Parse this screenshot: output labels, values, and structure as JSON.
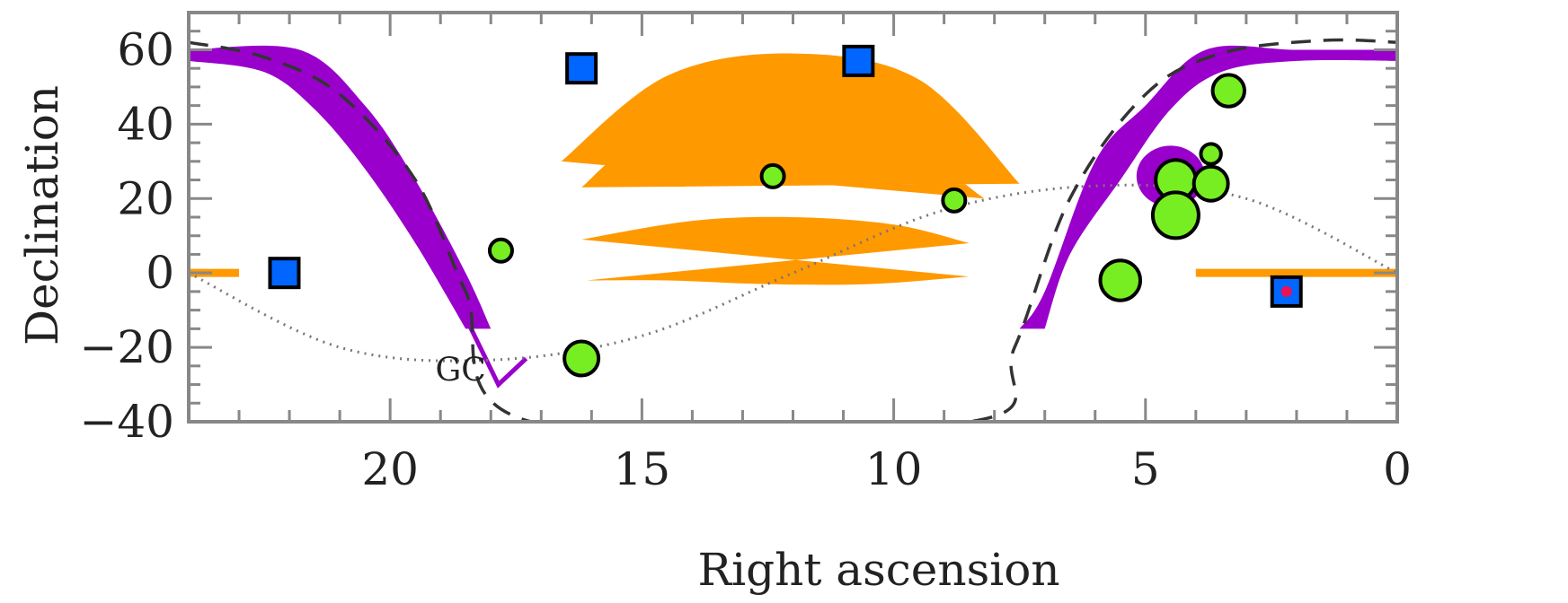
{
  "chart_data": {
    "type": "scatter",
    "xlabel": "Right ascension",
    "ylabel": "Declination",
    "xlim": [
      24,
      0
    ],
    "ylim": [
      -40,
      70
    ],
    "x_reversed": true,
    "x_ticks": [
      20,
      15,
      10,
      5,
      0
    ],
    "y_ticks": [
      60,
      40,
      20,
      0,
      -20,
      -40
    ],
    "grid": false,
    "annotations": [
      {
        "text": "GC",
        "x": 18.6,
        "y": -29
      }
    ],
    "colors": {
      "purple": "#9900cc",
      "orange": "#ff9900",
      "green": "#77ee22",
      "blue": "#0066ff",
      "red": "#ee1155",
      "dash": "#333333",
      "dotted": "#777777",
      "frame": "#888888"
    },
    "galactic_plane_curve": [
      [
        24,
        62
      ],
      [
        22.5,
        58
      ],
      [
        21,
        48
      ],
      [
        19.5,
        25
      ],
      [
        18.5,
        -5
      ],
      [
        17.2,
        -40
      ],
      [
        8.5,
        -40
      ],
      [
        7.6,
        -20
      ],
      [
        6.5,
        20
      ],
      [
        5,
        48
      ],
      [
        3.5,
        59
      ],
      [
        1.5,
        62.5
      ],
      [
        0,
        62
      ]
    ],
    "ecliptic_curve": [
      [
        24,
        0
      ],
      [
        21,
        -20
      ],
      [
        18,
        -23.4
      ],
      [
        15,
        -16.9
      ],
      [
        12,
        0
      ],
      [
        9,
        16.9
      ],
      [
        6,
        23.4
      ],
      [
        3,
        20
      ],
      [
        0,
        0
      ]
    ],
    "purple_band_left": {
      "upper": [
        [
          24,
          60
        ],
        [
          21.8,
          60
        ],
        [
          20.5,
          45
        ],
        [
          19.5,
          25
        ],
        [
          18.5,
          0
        ],
        [
          18,
          -15
        ]
      ],
      "lower": [
        [
          24,
          57
        ],
        [
          22.5,
          54
        ],
        [
          21.5,
          44
        ],
        [
          20.5,
          28
        ],
        [
          19.5,
          8
        ],
        [
          18.5,
          -15
        ]
      ]
    },
    "purple_band_right": {
      "upper": [
        [
          0,
          60
        ],
        [
          2,
          60
        ],
        [
          3.8,
          60
        ],
        [
          5,
          45
        ],
        [
          6,
          30
        ],
        [
          7,
          -5
        ],
        [
          7.5,
          -15
        ]
      ],
      "lower": [
        [
          0,
          57
        ],
        [
          2,
          57
        ],
        [
          3.5,
          54
        ],
        [
          4.5,
          44
        ],
        [
          5.5,
          25
        ],
        [
          6.5,
          5
        ],
        [
          7,
          -15
        ]
      ]
    },
    "orange_upper_band": {
      "outer": [
        [
          16.6,
          30
        ],
        [
          14.5,
          53
        ],
        [
          12,
          59
        ],
        [
          9.5,
          52
        ],
        [
          7.5,
          24
        ]
      ],
      "inner": [
        [
          8.2,
          20
        ],
        [
          10.2,
          38
        ],
        [
          12.5,
          40
        ],
        [
          15,
          35
        ],
        [
          16.2,
          23
        ]
      ]
    },
    "orange_lower_band": {
      "top": [
        [
          16.2,
          9
        ],
        [
          14,
          14
        ],
        [
          12,
          15
        ],
        [
          10,
          13
        ],
        [
          8.5,
          8
        ]
      ],
      "bottom": [
        [
          8.5,
          -1
        ],
        [
          10.5,
          -3
        ],
        [
          12.5,
          -3
        ],
        [
          14.5,
          -2
        ],
        [
          16.1,
          -2
        ]
      ]
    },
    "orange_lines": [
      {
        "x1": 24,
        "x2": 23,
        "y": 0
      },
      {
        "x1": 4,
        "x2": 0,
        "y": 0
      }
    ],
    "series": [
      {
        "marker": "circle",
        "points": [
          {
            "x": 17.8,
            "y": 6,
            "size": 1
          },
          {
            "x": 16.2,
            "y": -23,
            "size": 2
          },
          {
            "x": 12.4,
            "y": 26,
            "size": 1
          },
          {
            "x": 8.8,
            "y": 19.5,
            "size": 1
          },
          {
            "x": 5.5,
            "y": -2,
            "size": 2.5
          },
          {
            "x": 4.4,
            "y": 25,
            "size": 2.5
          },
          {
            "x": 4.4,
            "y": 15.5,
            "size": 3
          },
          {
            "x": 3.7,
            "y": 24,
            "size": 2
          },
          {
            "x": 3.7,
            "y": 32,
            "size": 0.8
          },
          {
            "x": 3.35,
            "y": 49,
            "size": 1.8
          }
        ]
      },
      {
        "marker": "square",
        "points": [
          {
            "x": 22.1,
            "y": 0
          },
          {
            "x": 16.2,
            "y": 55
          },
          {
            "x": 10.7,
            "y": 57
          },
          {
            "x": 2.2,
            "y": -5
          }
        ]
      }
    ],
    "purple_blob": {
      "x": 4.5,
      "y": 26
    },
    "red_dot": {
      "x": 2.2,
      "y": -5
    }
  }
}
